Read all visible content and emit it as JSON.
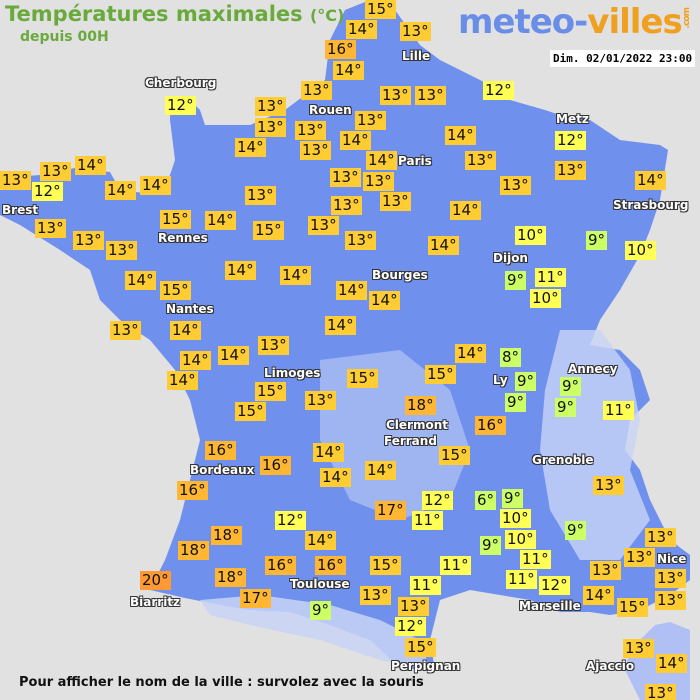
{
  "header": {
    "title": "Températures maximales",
    "unit": "(°C)",
    "subtitle": "depuis 00H"
  },
  "logo": {
    "part1": "meteo-",
    "part2": "villes",
    "suffix": ".com"
  },
  "timestamp": "Dim. 02/01/2022 23:00",
  "footer": "Pour afficher le nom de la ville : survolez avec la souris",
  "colors": {
    "background": "#e1e1e1",
    "land": "#7090ee",
    "title": "#6aaa3c",
    "scale": [
      {
        "max": 9,
        "color": "#ccff66"
      },
      {
        "max": 12,
        "color": "#ffff55"
      },
      {
        "max": 15,
        "color": "#ffcc33"
      },
      {
        "max": 18,
        "color": "#ffb733"
      },
      {
        "max": 99,
        "color": "#ff9933"
      }
    ]
  },
  "temperatures": [
    "15°",
    "14°",
    "13°",
    "16°",
    "14°",
    "12°",
    "13°",
    "13°",
    "13°",
    "12°",
    "13°",
    "13°",
    "13°",
    "13°",
    "14°",
    "12°",
    "14°",
    "13°",
    "14°",
    "14°",
    "13°",
    "13°",
    "14°",
    "13°",
    "13°",
    "12°",
    "14°",
    "14°",
    "13°",
    "13°",
    "13°",
    "14°",
    "13°",
    "13°",
    "13°",
    "14°",
    "13°",
    "15°",
    "14°",
    "15°",
    "13°",
    "13°",
    "13°",
    "13°",
    "14°",
    "10°",
    "9°",
    "10°",
    "14°",
    "14°",
    "9°",
    "11°",
    "10°",
    "14°",
    "15°",
    "14°",
    "14°",
    "13°",
    "14°",
    "14°",
    "13°",
    "14°",
    "14°",
    "14°",
    "8°",
    "14°",
    "15°",
    "15°",
    "9°",
    "9°",
    "9°",
    "9°",
    "15°",
    "13°",
    "15°",
    "11°",
    "18°",
    "16°",
    "16°",
    "14°",
    "15°",
    "16°",
    "14°",
    "14°",
    "13°",
    "16°",
    "6°",
    "9°",
    "12°",
    "17°",
    "12°",
    "11°",
    "10°",
    "9°",
    "18°",
    "14°",
    "13°",
    "10°",
    "9°",
    "18°",
    "13°",
    "11°",
    "11°",
    "16°",
    "16°",
    "15°",
    "11°",
    "13°",
    "13°",
    "20°",
    "18°",
    "12°",
    "11°",
    "14°",
    "13°",
    "17°",
    "13°",
    "15°",
    "9°",
    "13°",
    "12°",
    "15°",
    "13°",
    "14°",
    "13°"
  ],
  "cities": [
    "Cherbourg",
    "Lille",
    "Rouen",
    "Paris",
    "Metz",
    "Strasbourg",
    "Brest",
    "Rennes",
    "Dijon",
    "Bourges",
    "Nantes",
    "Limoges",
    "Ly",
    "Annecy",
    "Clermont",
    "Ferrand",
    "Grenoble",
    "Bordeaux",
    "Toulouse",
    "Biarritz",
    "Marseille",
    "Nice",
    "Perpignan",
    "Ajaccio"
  ]
}
